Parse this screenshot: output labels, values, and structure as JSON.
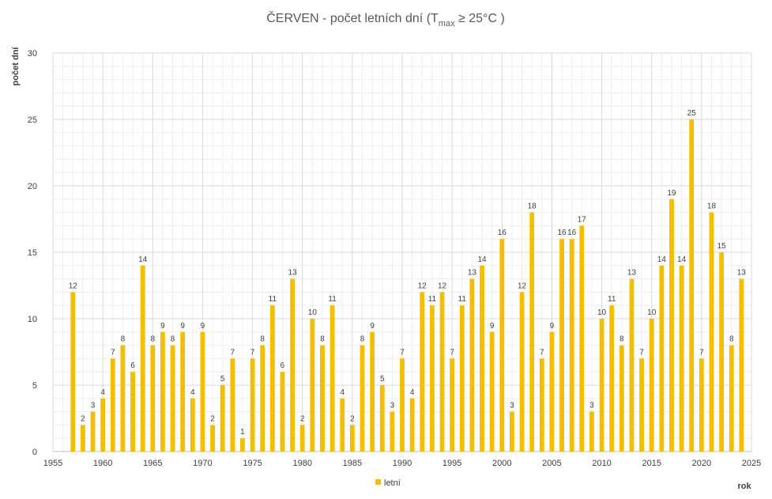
{
  "chart_data": {
    "type": "bar",
    "title": "ČERVEN - počet letních dní (T",
    "title_sub": "max",
    "title_suffix": " ≥ 25°C )",
    "xlabel": "rok",
    "ylabel": "počet dní",
    "xlim": [
      1955,
      2025
    ],
    "ylim": [
      0,
      30
    ],
    "x_ticks": [
      1955,
      1960,
      1965,
      1970,
      1975,
      1980,
      1985,
      1990,
      1995,
      2000,
      2005,
      2010,
      2015,
      2020,
      2025
    ],
    "y_ticks": [
      0,
      5,
      10,
      15,
      20,
      25,
      30
    ],
    "grid": true,
    "legend_position": "bottom-center",
    "series": [
      {
        "name": "letní",
        "color": "#F5BE00",
        "x": [
          1957,
          1958,
          1959,
          1960,
          1961,
          1962,
          1963,
          1964,
          1965,
          1966,
          1967,
          1968,
          1969,
          1970,
          1971,
          1972,
          1973,
          1974,
          1975,
          1976,
          1977,
          1978,
          1979,
          1980,
          1981,
          1982,
          1983,
          1984,
          1985,
          1986,
          1987,
          1988,
          1989,
          1990,
          1991,
          1992,
          1993,
          1994,
          1995,
          1996,
          1997,
          1998,
          1999,
          2000,
          2001,
          2002,
          2003,
          2004,
          2005,
          2006,
          2007,
          2008,
          2009,
          2010,
          2011,
          2012,
          2013,
          2014,
          2015,
          2016,
          2017,
          2018,
          2019,
          2020,
          2021,
          2022,
          2023,
          2024
        ],
        "values": [
          12,
          2,
          3,
          4,
          7,
          8,
          6,
          14,
          8,
          9,
          8,
          9,
          4,
          9,
          2,
          5,
          7,
          1,
          7,
          8,
          11,
          6,
          13,
          2,
          10,
          8,
          11,
          4,
          2,
          8,
          9,
          5,
          3,
          7,
          4,
          12,
          11,
          12,
          7,
          11,
          13,
          14,
          9,
          16,
          3,
          12,
          18,
          7,
          9,
          16,
          16,
          17,
          3,
          10,
          11,
          8,
          13,
          7,
          10,
          14,
          19,
          14,
          25,
          7,
          18,
          15,
          8,
          13
        ]
      }
    ]
  }
}
